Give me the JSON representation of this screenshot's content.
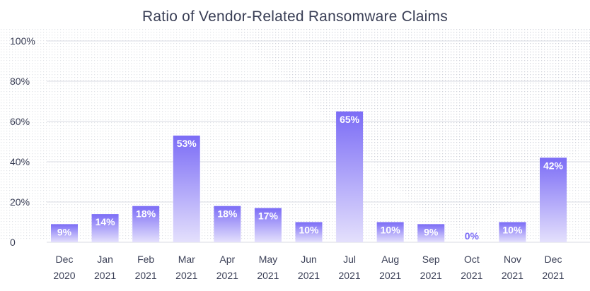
{
  "chart_data": {
    "type": "bar",
    "title": "Ratio of Vendor-Related Ransomware Claims",
    "xlabel": "",
    "ylabel": "",
    "ylim": [
      0,
      100
    ],
    "y_ticks": [
      "0",
      "20%",
      "40%",
      "60%",
      "80%",
      "100%"
    ],
    "categories": [
      [
        "Dec",
        "2020"
      ],
      [
        "Jan",
        "2021"
      ],
      [
        "Feb",
        "2021"
      ],
      [
        "Mar",
        "2021"
      ],
      [
        "Apr",
        "2021"
      ],
      [
        "May",
        "2021"
      ],
      [
        "Jun",
        "2021"
      ],
      [
        "Jul",
        "2021"
      ],
      [
        "Aug",
        "2021"
      ],
      [
        "Sep",
        "2021"
      ],
      [
        "Oct",
        "2021"
      ],
      [
        "Nov",
        "2021"
      ],
      [
        "Dec",
        "2021"
      ]
    ],
    "values": [
      9,
      14,
      18,
      53,
      18,
      17,
      10,
      65,
      10,
      9,
      0,
      10,
      42
    ],
    "data_labels": [
      "9%",
      "14%",
      "18%",
      "53%",
      "18%",
      "17%",
      "10%",
      "65%",
      "10%",
      "9%",
      "0%",
      "10%",
      "42%"
    ],
    "grid": true,
    "colors": {
      "bar_top": "#7b6cf6",
      "bar_bottom": "#e4e0fc",
      "label_inside": "#ffffff",
      "label_zero": "#7b6cf6",
      "axis_text": "#3a3f56",
      "grid": "#d9dbe3"
    }
  }
}
